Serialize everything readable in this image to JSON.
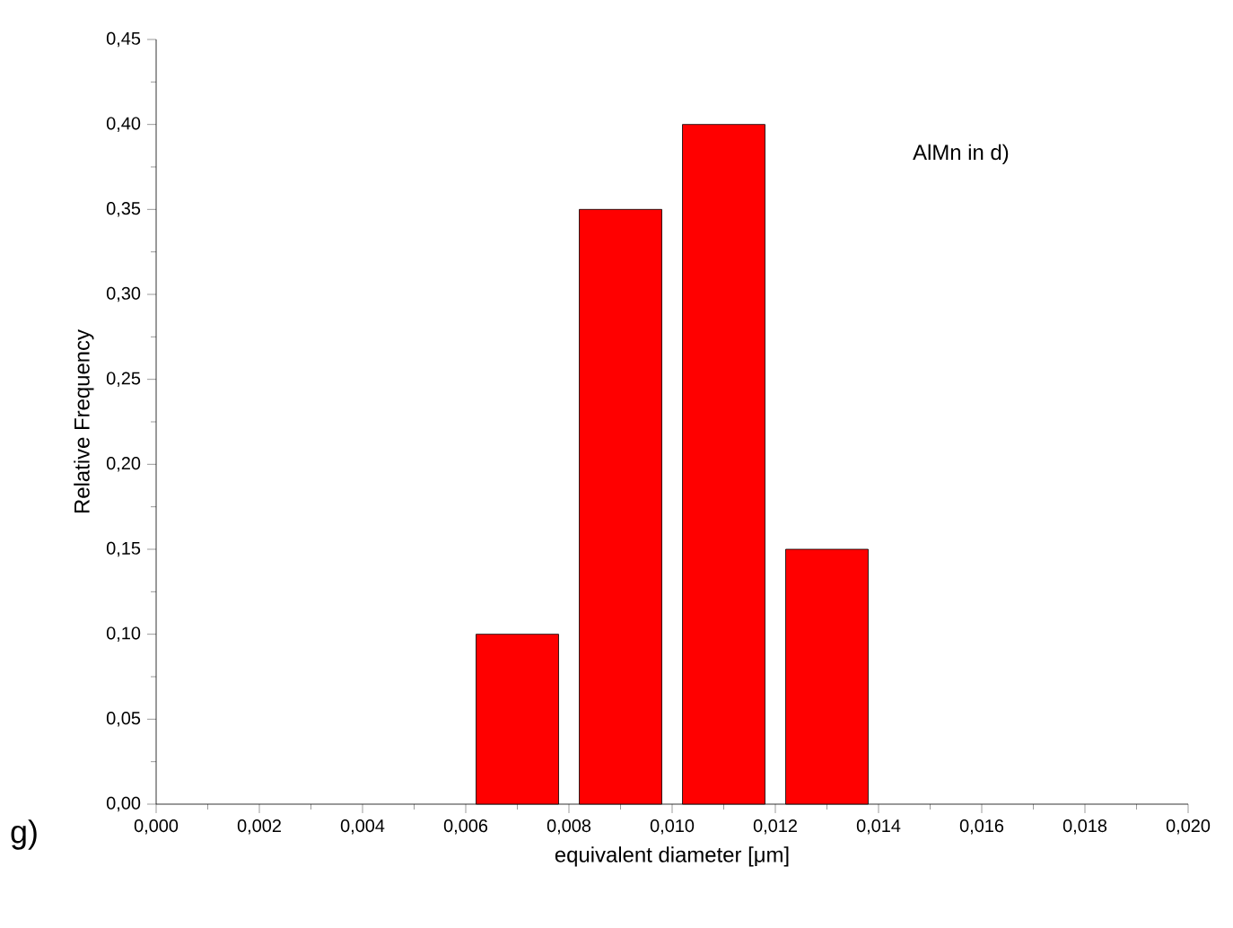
{
  "chart_data": {
    "type": "histogram",
    "xlabel": "equivalent diameter [μm]",
    "ylabel": "Relative Frequency",
    "annotations": [
      "AlMn in d)",
      "g)"
    ],
    "bins": [
      0.006,
      0.008,
      0.01,
      0.012,
      0.014
    ],
    "values": [
      0.1,
      0.35,
      0.4,
      0.15
    ],
    "color": "#ff0000",
    "xlim": [
      0,
      0.02
    ],
    "xticks": [
      {
        "value": 0,
        "label": "0,000"
      },
      {
        "value": 0.002,
        "label": "0,002"
      },
      {
        "value": 0.004,
        "label": "0,004"
      },
      {
        "value": 0.006,
        "label": "0,006"
      },
      {
        "value": 0.008,
        "label": "0,008"
      },
      {
        "value": 0.01,
        "label": "0,010"
      },
      {
        "value": 0.012,
        "label": "0,012"
      },
      {
        "value": 0.014,
        "label": "0,014"
      },
      {
        "value": 0.016,
        "label": "0,016"
      },
      {
        "value": 0.018,
        "label": "0,018"
      },
      {
        "value": 0.02,
        "label": "0,020"
      }
    ],
    "ylim": [
      0,
      0.45
    ],
    "yticks": [
      {
        "value": 0,
        "label": "0,00"
      },
      {
        "value": 0.05,
        "label": "0,05"
      },
      {
        "value": 0.1,
        "label": "0,10"
      },
      {
        "value": 0.15,
        "label": "0,15"
      },
      {
        "value": 0.2,
        "label": "0,20"
      },
      {
        "value": 0.25,
        "label": "0,25"
      },
      {
        "value": 0.3,
        "label": "0,30"
      },
      {
        "value": 0.35,
        "label": "0,35"
      },
      {
        "value": 0.4,
        "label": "0,40"
      },
      {
        "value": 0.45,
        "label": "0,45"
      }
    ],
    "grid": false
  }
}
